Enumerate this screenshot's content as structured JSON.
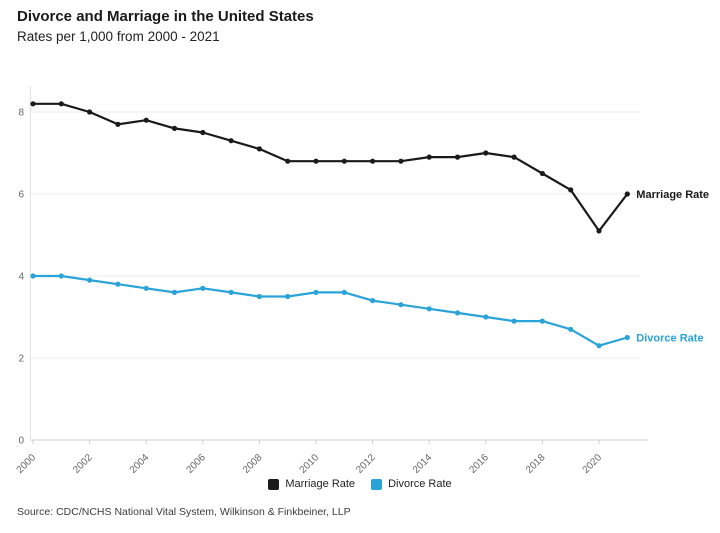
{
  "chart_data": {
    "type": "line",
    "title": "Divorce and Marriage in the United States",
    "subtitle": "Rates per 1,000 from 2000 - 2021",
    "x": [
      2000,
      2001,
      2002,
      2003,
      2004,
      2005,
      2006,
      2007,
      2008,
      2009,
      2010,
      2011,
      2012,
      2013,
      2014,
      2015,
      2016,
      2017,
      2018,
      2019,
      2020,
      2021
    ],
    "xticks": [
      2000,
      2002,
      2004,
      2006,
      2008,
      2010,
      2012,
      2014,
      2016,
      2018,
      2020
    ],
    "yticks": [
      0,
      2,
      4,
      6,
      8
    ],
    "ylim": [
      0,
      8.5
    ],
    "grid": true,
    "legend_position": "bottom-center",
    "series": [
      {
        "name": "Marriage Rate",
        "end_label": "Marriage Rate",
        "color": "#1a1a1a",
        "values": [
          8.2,
          8.2,
          8.0,
          7.7,
          7.8,
          7.6,
          7.5,
          7.3,
          7.1,
          6.8,
          6.8,
          6.8,
          6.8,
          6.8,
          6.9,
          6.9,
          7.0,
          6.9,
          6.5,
          6.1,
          5.1,
          6.0
        ]
      },
      {
        "name": "Divorce Rate",
        "end_label": "Divorce Rate",
        "color": "#2aa3d8",
        "values": [
          4.0,
          4.0,
          3.9,
          3.8,
          3.7,
          3.6,
          3.7,
          3.6,
          3.5,
          3.5,
          3.6,
          3.6,
          3.4,
          3.3,
          3.2,
          3.1,
          3.0,
          2.9,
          2.9,
          2.7,
          2.3,
          2.5
        ]
      }
    ],
    "axis_colors": {
      "grid": "#ebebeb",
      "axis": "#cfcfcf",
      "tick_text": "#666666"
    }
  },
  "source": {
    "text": "Source: CDC/NCHS National Vital System, Wilkinson & Finkbeiner, LLP"
  }
}
